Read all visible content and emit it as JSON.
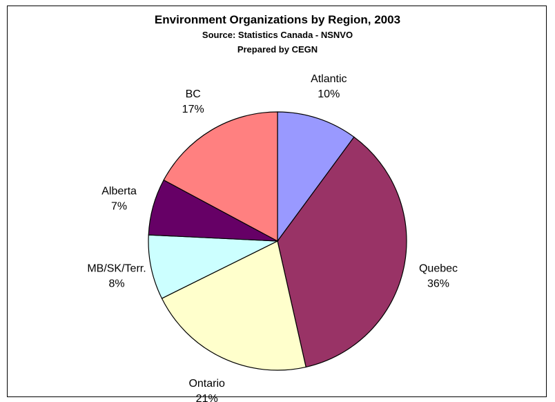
{
  "chart_data": {
    "type": "pie",
    "title": "Environment Organizations by Region, 2003",
    "subtitle_lines": [
      "Source:  Statistics Canada - NSNVO",
      "Prepared by CEGN"
    ],
    "slices": [
      {
        "label": "Atlantic",
        "value": 10,
        "value_label": "10%",
        "color": "#9999ff"
      },
      {
        "label": "Quebec",
        "value": 36,
        "value_label": "36%",
        "color": "#993366"
      },
      {
        "label": "Ontario",
        "value": 21,
        "value_label": "21%",
        "color": "#ffffcc"
      },
      {
        "label": "MB/SK/Terr.",
        "value": 8,
        "value_label": "8%",
        "color": "#ccffff"
      },
      {
        "label": "Alberta",
        "value": 7,
        "value_label": "7%",
        "color": "#660066"
      },
      {
        "label": "BC",
        "value": 17,
        "value_label": "17%",
        "color": "#ff8080"
      }
    ],
    "start_angle_deg": 0,
    "direction": "clockwise",
    "legend": "none",
    "border_color": "#000000"
  }
}
